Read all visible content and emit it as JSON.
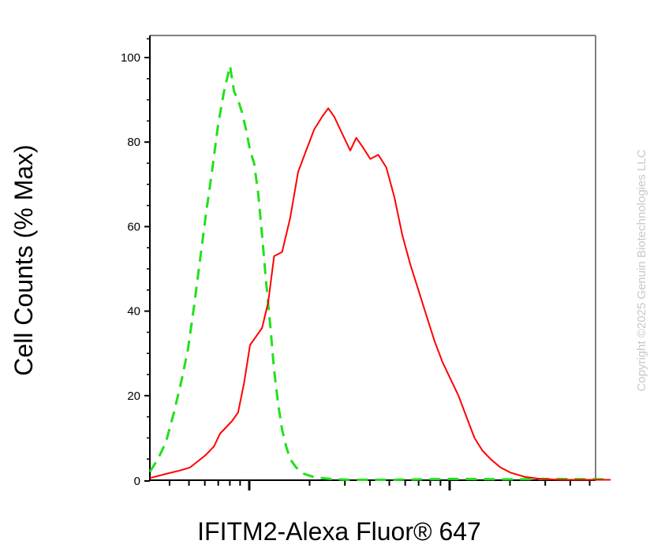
{
  "chart_data": {
    "type": "line",
    "xlabel": "IFITM2-Alexa Fluor® 647",
    "ylabel": "Cell Counts (% Max)",
    "x_scale": "log",
    "ylim": [
      0,
      105
    ],
    "y_ticks": [
      0,
      20,
      40,
      60,
      80,
      100
    ],
    "grid": false,
    "legend": "none",
    "series": [
      {
        "style": "dashed",
        "color": "#22e01c",
        "points": [
          [
            0,
            2
          ],
          [
            0.04,
            5
          ],
          [
            0.08,
            9
          ],
          [
            0.12,
            16
          ],
          [
            0.16,
            24
          ],
          [
            0.19,
            31
          ],
          [
            0.22,
            41
          ],
          [
            0.25,
            52
          ],
          [
            0.28,
            63
          ],
          [
            0.31,
            73
          ],
          [
            0.34,
            84
          ],
          [
            0.37,
            92
          ],
          [
            0.39,
            96
          ],
          [
            0.4,
            98
          ],
          [
            0.41,
            95
          ],
          [
            0.42,
            92
          ],
          [
            0.44,
            90
          ],
          [
            0.46,
            87
          ],
          [
            0.48,
            83
          ],
          [
            0.5,
            78
          ],
          [
            0.52,
            75
          ],
          [
            0.54,
            68
          ],
          [
            0.56,
            58
          ],
          [
            0.58,
            47
          ],
          [
            0.6,
            37
          ],
          [
            0.62,
            26
          ],
          [
            0.64,
            18
          ],
          [
            0.66,
            12
          ],
          [
            0.68,
            8
          ],
          [
            0.7,
            5
          ],
          [
            0.73,
            3
          ],
          [
            0.77,
            1.5
          ],
          [
            0.82,
            0.7
          ],
          [
            0.9,
            0.3
          ],
          [
            1.0,
            0.1
          ],
          [
            1.2,
            0.1
          ],
          [
            1.5,
            0.3
          ],
          [
            1.8,
            0.2
          ],
          [
            2.0,
            0.3
          ],
          [
            2.3,
            0.2
          ]
        ]
      },
      {
        "style": "solid",
        "color": "#ff0000",
        "points": [
          [
            0,
            0.5
          ],
          [
            0.08,
            1.5
          ],
          [
            0.15,
            2.3
          ],
          [
            0.2,
            3
          ],
          [
            0.24,
            4.5
          ],
          [
            0.28,
            6
          ],
          [
            0.32,
            8
          ],
          [
            0.35,
            11
          ],
          [
            0.38,
            12.5
          ],
          [
            0.41,
            14
          ],
          [
            0.44,
            16
          ],
          [
            0.47,
            23
          ],
          [
            0.5,
            32
          ],
          [
            0.53,
            34
          ],
          [
            0.56,
            36
          ],
          [
            0.59,
            42
          ],
          [
            0.62,
            53
          ],
          [
            0.66,
            54
          ],
          [
            0.7,
            62
          ],
          [
            0.74,
            73
          ],
          [
            0.78,
            78
          ],
          [
            0.82,
            83
          ],
          [
            0.86,
            86
          ],
          [
            0.89,
            88
          ],
          [
            0.92,
            86
          ],
          [
            0.96,
            82
          ],
          [
            1.0,
            78
          ],
          [
            1.03,
            81
          ],
          [
            1.06,
            79
          ],
          [
            1.1,
            76
          ],
          [
            1.14,
            77
          ],
          [
            1.18,
            74
          ],
          [
            1.22,
            67
          ],
          [
            1.26,
            58
          ],
          [
            1.3,
            51
          ],
          [
            1.34,
            45
          ],
          [
            1.38,
            39
          ],
          [
            1.42,
            33
          ],
          [
            1.46,
            28
          ],
          [
            1.5,
            24
          ],
          [
            1.54,
            20
          ],
          [
            1.58,
            15
          ],
          [
            1.62,
            10
          ],
          [
            1.66,
            7
          ],
          [
            1.7,
            5
          ],
          [
            1.75,
            3
          ],
          [
            1.8,
            1.8
          ],
          [
            1.87,
            0.8
          ],
          [
            1.95,
            0.3
          ],
          [
            2.05,
            0.1
          ],
          [
            2.3,
            0.1
          ]
        ]
      }
    ]
  },
  "copyright": "Copyright ©2025 Genuin Biotechnologies LLC"
}
